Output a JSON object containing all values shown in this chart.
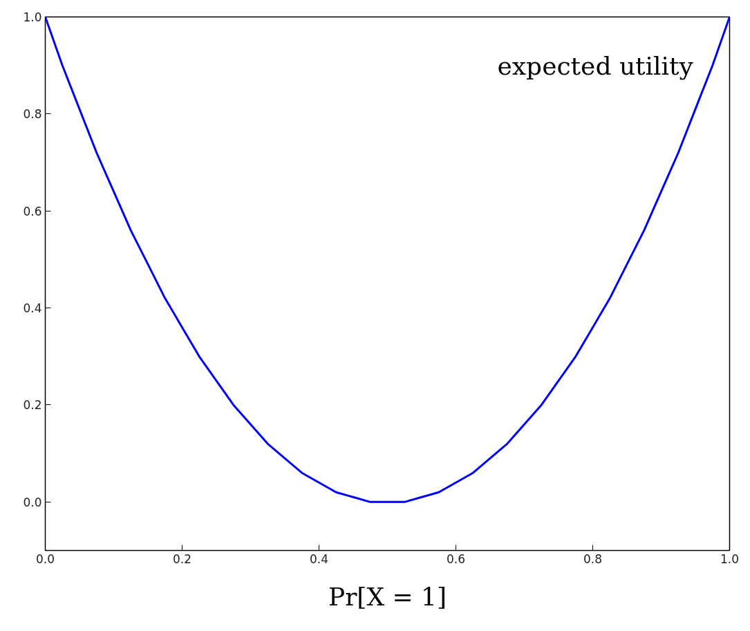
{
  "chart_data": {
    "type": "line",
    "xlabel": "Pr[X = 1]",
    "x": [
      0,
      0.025,
      0.05,
      0.075,
      0.1,
      0.125,
      0.15,
      0.175,
      0.2,
      0.225,
      0.25,
      0.275,
      0.3,
      0.325,
      0.35,
      0.375,
      0.4,
      0.425,
      0.45,
      0.475,
      0.5,
      0.525,
      0.55,
      0.575,
      0.6,
      0.625,
      0.65,
      0.675,
      0.7,
      0.725,
      0.75,
      0.775,
      0.8,
      0.825,
      0.85,
      0.875,
      0.9,
      0.925,
      0.95,
      0.975,
      1
    ],
    "series": [
      {
        "color": "#0000ff",
        "values": [
          1,
          0.9,
          0.81,
          0.72,
          0.64,
          0.56,
          0.49,
          0.42,
          0.36,
          0.3,
          0.25,
          0.2,
          0.16,
          0.12,
          0.09,
          0.06,
          0.04,
          0.02,
          0.01,
          0,
          0,
          0,
          0.01,
          0.02,
          0.04,
          0.06,
          0.09,
          0.12,
          0.16,
          0.2,
          0.25,
          0.3,
          0.36,
          0.42,
          0.49,
          0.56,
          0.64,
          0.72,
          0.81,
          0.9,
          1
        ]
      }
    ],
    "annotations": [
      "expected utility"
    ],
    "xlim": [
      0,
      1
    ],
    "ylim": [
      -0.1,
      1
    ],
    "xticks": [
      {
        "value": 0,
        "label": "0.0"
      },
      0.2,
      0.4,
      0.6,
      0.8,
      {
        "value": 1,
        "label": "1.0"
      }
    ],
    "yticks": [
      {
        "value": 0,
        "label": "0.0"
      },
      0.2,
      0.4,
      0.6,
      0.8,
      {
        "value": 1,
        "label": "1.0"
      }
    ],
    "grid": false,
    "marker": "none",
    "line_style": "solid"
  }
}
